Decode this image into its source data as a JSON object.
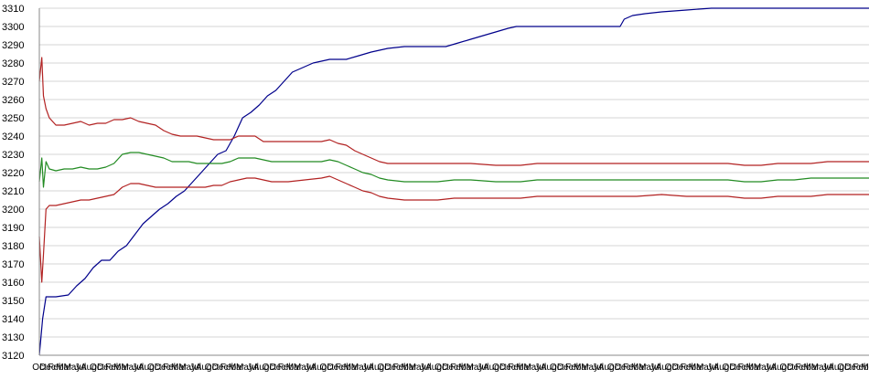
{
  "chart_data": {
    "type": "line",
    "title": "",
    "xlabel": "",
    "ylabel": "",
    "ylim": [
      3120,
      3310
    ],
    "ytick_step": 10,
    "x_range": [
      0,
      100
    ],
    "grid": {
      "horizontal": true,
      "vertical": false
    },
    "x_tick_labels": [
      "Oct",
      "Dec",
      "Feb",
      "Mar",
      "May",
      "Jul",
      "Aug",
      "Oct",
      "Dec",
      "Feb",
      "Mar",
      "May",
      "Jul",
      "Aug",
      "Oct",
      "Dec",
      "Feb",
      "Mar",
      "May",
      "Jul",
      "Aug",
      "Oct",
      "Dec",
      "Feb",
      "Mar",
      "May",
      "Jul",
      "Aug",
      "Oct",
      "Dec",
      "Feb",
      "Mar",
      "May",
      "Jul",
      "Aug",
      "Oct",
      "Dec",
      "Feb",
      "Mar",
      "May",
      "Jul",
      "Aug",
      "Oct",
      "Dec",
      "Feb",
      "Mar",
      "May",
      "Jul",
      "Aug",
      "Oct",
      "Dec",
      "Feb",
      "Mar",
      "May",
      "Jul",
      "Aug",
      "Oct",
      "Dec",
      "Feb",
      "Mar",
      "May",
      "Jul",
      "Aug",
      "Oct",
      "Dec",
      "Feb",
      "Mar",
      "May",
      "Jul",
      "Aug",
      "Oct",
      "Dec",
      "Feb",
      "Mar",
      "May",
      "Jul",
      "Aug",
      "Oct",
      "Dec",
      "Feb",
      "Mar",
      "May",
      "Jul",
      "Aug",
      "Oct",
      "Dec",
      "Feb",
      "Mar",
      "May",
      "Jul",
      "Aug",
      "Oct",
      "Dec",
      "Feb",
      "Mar",
      "May",
      "Jul",
      "Aug",
      "Oct",
      "Dec",
      "Feb",
      "Mar"
    ],
    "series": [
      {
        "key": "cumulative",
        "color": "#00008B",
        "points": [
          [
            0,
            3120
          ],
          [
            0.4,
            3140
          ],
          [
            0.8,
            3152
          ],
          [
            2,
            3152
          ],
          [
            3.5,
            3153
          ],
          [
            4.5,
            3158
          ],
          [
            5.5,
            3162
          ],
          [
            6.5,
            3168
          ],
          [
            7.5,
            3172
          ],
          [
            8.5,
            3172
          ],
          [
            9.5,
            3177
          ],
          [
            10.5,
            3180
          ],
          [
            11.5,
            3186
          ],
          [
            12.5,
            3192
          ],
          [
            13.5,
            3196
          ],
          [
            14.5,
            3200
          ],
          [
            15.5,
            3203
          ],
          [
            16.5,
            3207
          ],
          [
            17.5,
            3210
          ],
          [
            18.5,
            3215
          ],
          [
            19.5,
            3220
          ],
          [
            20.5,
            3225
          ],
          [
            21.5,
            3230
          ],
          [
            22.5,
            3232
          ],
          [
            23.5,
            3240
          ],
          [
            24.5,
            3250
          ],
          [
            25.5,
            3253
          ],
          [
            26.5,
            3257
          ],
          [
            27.5,
            3262
          ],
          [
            28.5,
            3265
          ],
          [
            29.5,
            3270
          ],
          [
            30.5,
            3275
          ],
          [
            31.5,
            3277
          ],
          [
            33,
            3280
          ],
          [
            35,
            3282
          ],
          [
            37,
            3282
          ],
          [
            38.5,
            3284
          ],
          [
            40,
            3286
          ],
          [
            42,
            3288
          ],
          [
            44,
            3289
          ],
          [
            47,
            3289
          ],
          [
            49,
            3289
          ],
          [
            50.5,
            3291
          ],
          [
            52,
            3293
          ],
          [
            53.5,
            3295
          ],
          [
            55,
            3297
          ],
          [
            56.5,
            3299
          ],
          [
            57.5,
            3300
          ],
          [
            60,
            3300
          ],
          [
            62,
            3300
          ],
          [
            64,
            3300
          ],
          [
            66,
            3300
          ],
          [
            68,
            3300
          ],
          [
            70,
            3300
          ],
          [
            70.5,
            3304
          ],
          [
            71.5,
            3306
          ],
          [
            73,
            3307
          ],
          [
            75,
            3308
          ],
          [
            78,
            3309
          ],
          [
            81,
            3310
          ],
          [
            85,
            3310
          ],
          [
            90,
            3310
          ],
          [
            95,
            3310
          ],
          [
            100,
            3310
          ]
        ]
      },
      {
        "key": "upper",
        "color": "#B22222",
        "points": [
          [
            0,
            3270
          ],
          [
            0.3,
            3283
          ],
          [
            0.5,
            3262
          ],
          [
            0.8,
            3255
          ],
          [
            1.2,
            3250
          ],
          [
            2,
            3246
          ],
          [
            3,
            3246
          ],
          [
            4,
            3247
          ],
          [
            5,
            3248
          ],
          [
            6,
            3246
          ],
          [
            7,
            3247
          ],
          [
            8,
            3247
          ],
          [
            9,
            3249
          ],
          [
            10,
            3249
          ],
          [
            11,
            3250
          ],
          [
            12,
            3248
          ],
          [
            13,
            3247
          ],
          [
            14,
            3246
          ],
          [
            15,
            3243
          ],
          [
            16,
            3241
          ],
          [
            17,
            3240
          ],
          [
            18,
            3240
          ],
          [
            19,
            3240
          ],
          [
            20,
            3239
          ],
          [
            21,
            3238
          ],
          [
            22,
            3238
          ],
          [
            23,
            3238
          ],
          [
            24,
            3240
          ],
          [
            25,
            3240
          ],
          [
            26,
            3240
          ],
          [
            27,
            3237
          ],
          [
            28,
            3237
          ],
          [
            30,
            3237
          ],
          [
            32,
            3237
          ],
          [
            34,
            3237
          ],
          [
            35,
            3238
          ],
          [
            36,
            3236
          ],
          [
            37,
            3235
          ],
          [
            38,
            3232
          ],
          [
            39,
            3230
          ],
          [
            40,
            3228
          ],
          [
            41,
            3226
          ],
          [
            42,
            3225
          ],
          [
            44,
            3225
          ],
          [
            46,
            3225
          ],
          [
            48,
            3225
          ],
          [
            50,
            3225
          ],
          [
            52,
            3225
          ],
          [
            55,
            3224
          ],
          [
            58,
            3224
          ],
          [
            60,
            3225
          ],
          [
            62,
            3225
          ],
          [
            65,
            3225
          ],
          [
            68,
            3225
          ],
          [
            70,
            3225
          ],
          [
            72,
            3225
          ],
          [
            75,
            3225
          ],
          [
            78,
            3225
          ],
          [
            80,
            3225
          ],
          [
            83,
            3225
          ],
          [
            85,
            3224
          ],
          [
            87,
            3224
          ],
          [
            89,
            3225
          ],
          [
            91,
            3225
          ],
          [
            93,
            3225
          ],
          [
            95,
            3226
          ],
          [
            97,
            3226
          ],
          [
            100,
            3226
          ]
        ]
      },
      {
        "key": "middle",
        "color": "#228B22",
        "points": [
          [
            0,
            3215
          ],
          [
            0.3,
            3228
          ],
          [
            0.5,
            3212
          ],
          [
            0.8,
            3226
          ],
          [
            1.2,
            3222
          ],
          [
            2,
            3221
          ],
          [
            3,
            3222
          ],
          [
            4,
            3222
          ],
          [
            5,
            3223
          ],
          [
            6,
            3222
          ],
          [
            7,
            3222
          ],
          [
            8,
            3223
          ],
          [
            9,
            3225
          ],
          [
            10,
            3230
          ],
          [
            11,
            3231
          ],
          [
            12,
            3231
          ],
          [
            13,
            3230
          ],
          [
            14,
            3229
          ],
          [
            15,
            3228
          ],
          [
            16,
            3226
          ],
          [
            17,
            3226
          ],
          [
            18,
            3226
          ],
          [
            19,
            3225
          ],
          [
            20,
            3225
          ],
          [
            21,
            3225
          ],
          [
            22,
            3225
          ],
          [
            23,
            3226
          ],
          [
            24,
            3228
          ],
          [
            25,
            3228
          ],
          [
            26,
            3228
          ],
          [
            27,
            3227
          ],
          [
            28,
            3226
          ],
          [
            30,
            3226
          ],
          [
            32,
            3226
          ],
          [
            34,
            3226
          ],
          [
            35,
            3227
          ],
          [
            36,
            3226
          ],
          [
            37,
            3224
          ],
          [
            38,
            3222
          ],
          [
            39,
            3220
          ],
          [
            40,
            3219
          ],
          [
            41,
            3217
          ],
          [
            42,
            3216
          ],
          [
            44,
            3215
          ],
          [
            46,
            3215
          ],
          [
            48,
            3215
          ],
          [
            50,
            3216
          ],
          [
            52,
            3216
          ],
          [
            55,
            3215
          ],
          [
            58,
            3215
          ],
          [
            60,
            3216
          ],
          [
            62,
            3216
          ],
          [
            65,
            3216
          ],
          [
            68,
            3216
          ],
          [
            70,
            3216
          ],
          [
            72,
            3216
          ],
          [
            75,
            3216
          ],
          [
            78,
            3216
          ],
          [
            80,
            3216
          ],
          [
            83,
            3216
          ],
          [
            85,
            3215
          ],
          [
            87,
            3215
          ],
          [
            89,
            3216
          ],
          [
            91,
            3216
          ],
          [
            93,
            3217
          ],
          [
            95,
            3217
          ],
          [
            97,
            3217
          ],
          [
            100,
            3217
          ]
        ]
      },
      {
        "key": "lower",
        "color": "#B22222",
        "points": [
          [
            0,
            3185
          ],
          [
            0.3,
            3160
          ],
          [
            0.5,
            3175
          ],
          [
            0.8,
            3200
          ],
          [
            1.2,
            3202
          ],
          [
            2,
            3202
          ],
          [
            3,
            3203
          ],
          [
            4,
            3204
          ],
          [
            5,
            3205
          ],
          [
            6,
            3205
          ],
          [
            7,
            3206
          ],
          [
            8,
            3207
          ],
          [
            9,
            3208
          ],
          [
            10,
            3212
          ],
          [
            11,
            3214
          ],
          [
            12,
            3214
          ],
          [
            13,
            3213
          ],
          [
            14,
            3212
          ],
          [
            15,
            3212
          ],
          [
            16,
            3212
          ],
          [
            17,
            3212
          ],
          [
            18,
            3212
          ],
          [
            19,
            3212
          ],
          [
            20,
            3212
          ],
          [
            21,
            3213
          ],
          [
            22,
            3213
          ],
          [
            23,
            3215
          ],
          [
            24,
            3216
          ],
          [
            25,
            3217
          ],
          [
            26,
            3217
          ],
          [
            27,
            3216
          ],
          [
            28,
            3215
          ],
          [
            30,
            3215
          ],
          [
            32,
            3216
          ],
          [
            34,
            3217
          ],
          [
            35,
            3218
          ],
          [
            36,
            3216
          ],
          [
            37,
            3214
          ],
          [
            38,
            3212
          ],
          [
            39,
            3210
          ],
          [
            40,
            3209
          ],
          [
            41,
            3207
          ],
          [
            42,
            3206
          ],
          [
            44,
            3205
          ],
          [
            46,
            3205
          ],
          [
            48,
            3205
          ],
          [
            50,
            3206
          ],
          [
            52,
            3206
          ],
          [
            55,
            3206
          ],
          [
            58,
            3206
          ],
          [
            60,
            3207
          ],
          [
            62,
            3207
          ],
          [
            65,
            3207
          ],
          [
            68,
            3207
          ],
          [
            70,
            3207
          ],
          [
            72,
            3207
          ],
          [
            75,
            3208
          ],
          [
            78,
            3207
          ],
          [
            80,
            3207
          ],
          [
            83,
            3207
          ],
          [
            85,
            3206
          ],
          [
            87,
            3206
          ],
          [
            89,
            3207
          ],
          [
            91,
            3207
          ],
          [
            93,
            3207
          ],
          [
            95,
            3208
          ],
          [
            97,
            3208
          ],
          [
            100,
            3208
          ]
        ]
      }
    ]
  }
}
